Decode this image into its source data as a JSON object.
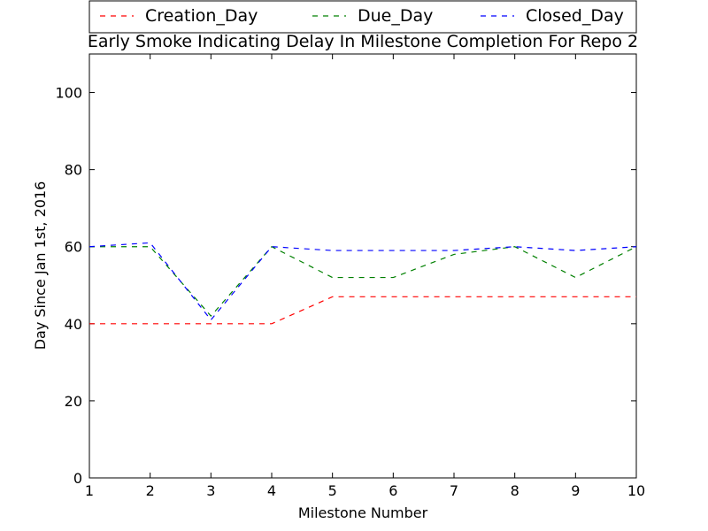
{
  "chart_data": {
    "type": "line",
    "title": "Early Smoke Indicating Delay In Milestone Completion For Repo 2",
    "xlabel": "Milestone Number",
    "ylabel": "Day Since Jan 1st, 2016",
    "xlim": [
      1,
      10
    ],
    "ylim": [
      0,
      110
    ],
    "x_ticks": [
      "1",
      "2",
      "3",
      "4",
      "5",
      "6",
      "7",
      "8",
      "9",
      "10"
    ],
    "y_ticks": [
      "0",
      "20",
      "40",
      "60",
      "80",
      "100"
    ],
    "x": [
      1,
      2,
      3,
      4,
      5,
      6,
      7,
      8,
      9,
      10
    ],
    "grid": false,
    "legend_position": "top",
    "series": [
      {
        "name": "Creation_Day",
        "color": "#ff0000",
        "dash": "dashed",
        "values": [
          40,
          40,
          40,
          40,
          47,
          47,
          47,
          47,
          47,
          47
        ]
      },
      {
        "name": "Due_Day",
        "color": "#008000",
        "dash": "dashed",
        "values": [
          60,
          60,
          42,
          60,
          52,
          52,
          58,
          60,
          52,
          60
        ]
      },
      {
        "name": "Closed_Day",
        "color": "#0000ff",
        "dash": "dashed",
        "values": [
          60,
          61,
          41,
          60,
          59,
          59,
          59,
          60,
          59,
          60
        ]
      }
    ]
  }
}
